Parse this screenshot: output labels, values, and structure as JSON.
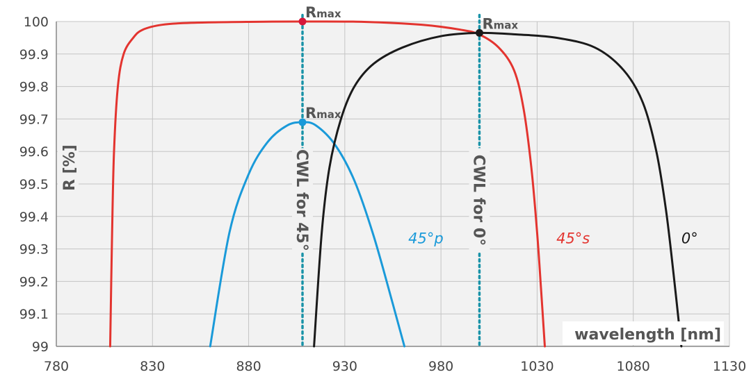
{
  "chart_data": {
    "type": "line",
    "xlabel": "wavelength [nm]",
    "ylabel": "R [%]",
    "xlim": [
      780,
      1130
    ],
    "ylim": [
      99,
      100
    ],
    "xticks": [
      "780",
      "830",
      "880",
      "930",
      "980",
      "1030",
      "1080",
      "1130"
    ],
    "yticks": [
      "99",
      "99.1",
      "99.2",
      "99.3",
      "99.4",
      "99.5",
      "99.6",
      "99.7",
      "99.8",
      "99.9",
      "100"
    ],
    "grid": true,
    "series": [
      {
        "name": "45°s",
        "color": "#e3342f",
        "x": [
          808,
          809,
          810,
          812,
          815,
          820,
          825,
          835,
          850,
          880,
          908,
          940,
          970,
          990,
          1000,
          1010,
          1018,
          1023,
          1027,
          1030,
          1032,
          1034
        ],
        "y": [
          99.0,
          99.35,
          99.6,
          99.8,
          99.9,
          99.95,
          99.975,
          99.99,
          99.996,
          99.999,
          100.0,
          99.999,
          99.99,
          99.975,
          99.96,
          99.92,
          99.85,
          99.73,
          99.55,
          99.35,
          99.18,
          99.0
        ]
      },
      {
        "name": "45°p",
        "color": "#1a9ad9",
        "x": [
          860,
          870,
          880,
          890,
          900,
          908,
          915,
          925,
          935,
          945,
          955,
          961
        ],
        "y": [
          99.0,
          99.35,
          99.53,
          99.63,
          99.68,
          99.69,
          99.68,
          99.62,
          99.51,
          99.34,
          99.13,
          99.0
        ]
      },
      {
        "name": "0°",
        "color": "#1a1a1a",
        "x": [
          914,
          918,
          922,
          928,
          935,
          945,
          960,
          980,
          1000,
          1020,
          1040,
          1060,
          1075,
          1085,
          1092,
          1097,
          1101,
          1105
        ],
        "y": [
          99.0,
          99.35,
          99.55,
          99.7,
          99.8,
          99.87,
          99.92,
          99.955,
          99.965,
          99.96,
          99.95,
          99.92,
          99.85,
          99.75,
          99.6,
          99.42,
          99.22,
          99.0
        ]
      }
    ],
    "markers": [
      {
        "label": "R",
        "sub": "max",
        "x": 908,
        "y": 100.0,
        "color": "#d6173a"
      },
      {
        "label": "R",
        "sub": "max",
        "x": 908,
        "y": 99.69,
        "color": "#1a9ad9"
      },
      {
        "label": "R",
        "sub": "max",
        "x": 1000,
        "y": 99.965,
        "color": "#1a1a1a"
      }
    ],
    "vlines": [
      {
        "x": 908,
        "label": "CWL for 45°",
        "color": "#1a93a8"
      },
      {
        "x": 1000,
        "label": "CWL for 0°",
        "color": "#1a93a8"
      }
    ],
    "curve_labels": [
      {
        "text": "45°p",
        "x": 963,
        "y": 99.33,
        "color": "#1a9ad9"
      },
      {
        "text": "45°s",
        "x": 1040,
        "y": 99.33,
        "color": "#e3342f"
      },
      {
        "text": "0°",
        "x": 1105,
        "y": 99.33,
        "color": "#1a1a1a"
      }
    ]
  }
}
